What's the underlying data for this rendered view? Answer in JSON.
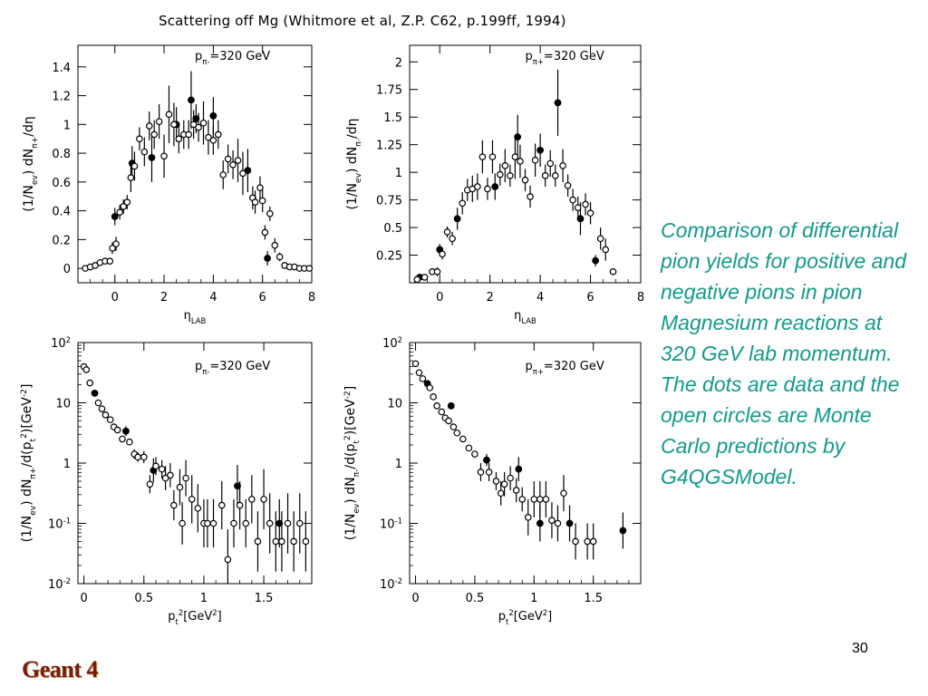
{
  "slide": {
    "title": "Scattering off Mg (Whitmore et al, Z.P. C62, p.199ff, 1994)",
    "caption": "Comparison of differential pion yields for positive and negative pions in pion Magnesium reactions at 320 GeV lab momentum. The dots are data and the open circles are Monte Carlo predictions by G4QGSModel.",
    "page_number": "30",
    "brand": "Geant 4",
    "colors": {
      "caption": "#139a8a",
      "brand": "#7a1c12"
    }
  },
  "chart_data": [
    {
      "id": "eta-pi-minus",
      "type": "scatter",
      "annotation": "pπ-=320 GeV",
      "ylabel": "(1/Nev) dNπ+/dη",
      "xlabel": "ηLAB",
      "xlim": [
        -1.5,
        8
      ],
      "ylim": [
        -0.1,
        1.55
      ],
      "x_ticks": [
        "0",
        "2",
        "4",
        "6",
        "8"
      ],
      "y_ticks": [
        "0",
        "0.2",
        "0.4",
        "0.6",
        "0.8",
        "1",
        "1.2",
        "1.4"
      ],
      "y_scale": "linear",
      "series": [
        {
          "name": "data",
          "marker": "filled-dot",
          "points": [
            [
              0,
              0.36,
              0.06
            ],
            [
              0.7,
              0.73,
              0.12
            ],
            [
              1.5,
              0.77,
              0.17
            ],
            [
              2.5,
              1.0,
              0.12
            ],
            [
              3.1,
              1.17,
              0.2
            ],
            [
              3.3,
              1.04,
              0.1
            ],
            [
              4.0,
              1.06,
              0.13
            ],
            [
              5.4,
              0.68,
              0.15
            ],
            [
              6.2,
              0.07,
              0.05
            ]
          ]
        },
        {
          "name": "mc",
          "marker": "open-circle",
          "points": [
            [
              -1.2,
              0.0,
              0
            ],
            [
              -1.0,
              0.01,
              0
            ],
            [
              -0.8,
              0.02,
              0
            ],
            [
              -0.6,
              0.04,
              0
            ],
            [
              -0.4,
              0.05,
              0
            ],
            [
              -0.2,
              0.05,
              0
            ],
            [
              -0.1,
              0.14,
              0.04
            ],
            [
              0.05,
              0.17,
              0.05
            ],
            [
              0.2,
              0.39,
              0.05
            ],
            [
              0.35,
              0.43,
              0.05
            ],
            [
              0.5,
              0.46,
              0.05
            ],
            [
              0.65,
              0.63,
              0.1
            ],
            [
              0.8,
              0.71,
              0.1
            ],
            [
              1.0,
              0.9,
              0.08
            ],
            [
              1.2,
              0.81,
              0.1
            ],
            [
              1.4,
              0.99,
              0.1
            ],
            [
              1.6,
              0.93,
              0.1
            ],
            [
              1.8,
              1.02,
              0.12
            ],
            [
              2.0,
              0.78,
              0.15
            ],
            [
              2.2,
              1.07,
              0.2
            ],
            [
              2.4,
              1.0,
              0.15
            ],
            [
              2.6,
              0.9,
              0.1
            ],
            [
              2.8,
              0.93,
              0.1
            ],
            [
              3.0,
              0.93,
              0.1
            ],
            [
              3.2,
              1.0,
              0.1
            ],
            [
              3.4,
              0.98,
              0.1
            ],
            [
              3.6,
              1.01,
              0.15
            ],
            [
              3.8,
              0.91,
              0.12
            ],
            [
              4.0,
              0.89,
              0.1
            ],
            [
              4.2,
              0.93,
              0.1
            ],
            [
              4.4,
              0.65,
              0.1
            ],
            [
              4.6,
              0.76,
              0.1
            ],
            [
              4.8,
              0.72,
              0.1
            ],
            [
              5.0,
              0.75,
              0.15
            ],
            [
              5.2,
              0.66,
              0.15
            ],
            [
              5.6,
              0.49,
              0.08
            ],
            [
              5.7,
              0.46,
              0.08
            ],
            [
              5.9,
              0.56,
              0.08
            ],
            [
              6.0,
              0.47,
              0.08
            ],
            [
              6.1,
              0.25,
              0.05
            ],
            [
              6.3,
              0.38,
              0.05
            ],
            [
              6.5,
              0.16,
              0.05
            ],
            [
              6.7,
              0.08,
              0.03
            ],
            [
              6.9,
              0.02,
              0
            ],
            [
              7.1,
              0.01,
              0
            ],
            [
              7.3,
              0.01,
              0
            ],
            [
              7.5,
              0.0,
              0
            ],
            [
              7.7,
              0.0,
              0
            ],
            [
              7.9,
              0.0,
              0
            ]
          ]
        }
      ]
    },
    {
      "id": "eta-pi-plus",
      "type": "scatter",
      "annotation": "pπ+=320 GeV",
      "ylabel": "(1/Nev) dNπ-/dη",
      "xlabel": "ηLAB",
      "xlim": [
        -1.2,
        8
      ],
      "ylim": [
        0,
        2.15
      ],
      "x_ticks": [
        "0",
        "2",
        "4",
        "6",
        "8"
      ],
      "y_ticks": [
        "0.25",
        "0.5",
        "0.75",
        "1",
        "1.25",
        "1.5",
        "1.75",
        "2"
      ],
      "y_scale": "linear",
      "series": [
        {
          "name": "data",
          "marker": "filled-dot",
          "points": [
            [
              -0.8,
              0.05,
              0
            ],
            [
              0,
              0.3,
              0.05
            ],
            [
              0.7,
              0.58,
              0.1
            ],
            [
              2.2,
              0.87,
              0.12
            ],
            [
              3.1,
              1.32,
              0.2
            ],
            [
              4.0,
              1.2,
              0.15
            ],
            [
              4.7,
              1.63,
              0.3
            ],
            [
              5.6,
              0.58,
              0.15
            ],
            [
              6.2,
              0.2,
              0.05
            ]
          ]
        },
        {
          "name": "mc",
          "marker": "open-circle",
          "points": [
            [
              -0.9,
              0.03,
              0
            ],
            [
              -0.6,
              0.05,
              0
            ],
            [
              -0.3,
              0.1,
              0.03
            ],
            [
              -0.1,
              0.1,
              0.04
            ],
            [
              0.1,
              0.26,
              0.05
            ],
            [
              0.3,
              0.46,
              0.05
            ],
            [
              0.5,
              0.4,
              0.06
            ],
            [
              0.9,
              0.72,
              0.1
            ],
            [
              1.1,
              0.84,
              0.1
            ],
            [
              1.3,
              0.85,
              0.12
            ],
            [
              1.5,
              0.87,
              0.12
            ],
            [
              1.7,
              1.14,
              0.15
            ],
            [
              1.9,
              0.85,
              0.1
            ],
            [
              2.1,
              1.14,
              0.15
            ],
            [
              2.4,
              0.98,
              0.1
            ],
            [
              2.6,
              1.06,
              0.15
            ],
            [
              2.8,
              0.97,
              0.1
            ],
            [
              3.0,
              1.14,
              0.2
            ],
            [
              3.2,
              1.1,
              0.15
            ],
            [
              3.4,
              0.93,
              0.1
            ],
            [
              3.6,
              0.78,
              0.1
            ],
            [
              3.8,
              1.11,
              0.15
            ],
            [
              4.2,
              0.97,
              0.1
            ],
            [
              4.4,
              1.08,
              0.12
            ],
            [
              4.6,
              0.97,
              0.1
            ],
            [
              4.9,
              1.06,
              0.15
            ],
            [
              5.1,
              0.88,
              0.1
            ],
            [
              5.3,
              0.75,
              0.1
            ],
            [
              5.5,
              0.68,
              0.1
            ],
            [
              5.8,
              0.71,
              0.1
            ],
            [
              6.0,
              0.63,
              0.1
            ],
            [
              6.4,
              0.4,
              0.1
            ],
            [
              6.6,
              0.3,
              0.1
            ],
            [
              6.9,
              0.1,
              0.03
            ]
          ]
        }
      ]
    },
    {
      "id": "pt2-pi-minus",
      "type": "scatter",
      "annotation": "pπ-=320 GeV",
      "ylabel": "(1/Nev) dNπ+/d(pt2)[GeV-2]",
      "xlabel": "pt2[GeV2]",
      "xlim": [
        -0.05,
        1.9
      ],
      "ylim": [
        -2,
        2
      ],
      "x_ticks": [
        "0",
        "0.5",
        "1",
        "1.5"
      ],
      "y_ticks": [
        "10-2",
        "10-1",
        "1",
        "10",
        "102"
      ],
      "y_scale": "log10",
      "series": [
        {
          "name": "data",
          "marker": "filled-dot",
          "points": [
            [
              0.09,
              1.16,
              0
            ],
            [
              0.35,
              0.53,
              0.08
            ],
            [
              0.58,
              -0.12,
              0.2
            ],
            [
              1.28,
              -0.38,
              0.35
            ],
            [
              1.63,
              -1.0,
              0.4
            ]
          ]
        },
        {
          "name": "mc",
          "marker": "open-circle",
          "points": [
            [
              0.0,
              1.6,
              0
            ],
            [
              0.02,
              1.55,
              0
            ],
            [
              0.05,
              1.33,
              0
            ],
            [
              0.12,
              1.0,
              0
            ],
            [
              0.15,
              0.9,
              0
            ],
            [
              0.18,
              0.8,
              0.05
            ],
            [
              0.22,
              0.72,
              0
            ],
            [
              0.25,
              0.6,
              0.05
            ],
            [
              0.28,
              0.55,
              0.05
            ],
            [
              0.32,
              0.4,
              0.05
            ],
            [
              0.38,
              0.35,
              0.05
            ],
            [
              0.42,
              0.15,
              0.08
            ],
            [
              0.45,
              0.1,
              0.08
            ],
            [
              0.5,
              0.1,
              0.1
            ],
            [
              0.55,
              -0.35,
              0.15
            ],
            [
              0.6,
              -0.05,
              0.15
            ],
            [
              0.65,
              -0.1,
              0.15
            ],
            [
              0.68,
              -0.25,
              0.2
            ],
            [
              0.72,
              -0.2,
              0.2
            ],
            [
              0.75,
              -0.7,
              0.25
            ],
            [
              0.8,
              -0.4,
              0.3
            ],
            [
              0.82,
              -1.0,
              0.35
            ],
            [
              0.85,
              -0.25,
              0.3
            ],
            [
              0.9,
              -0.6,
              0.4
            ],
            [
              0.95,
              -0.75,
              0.4
            ],
            [
              1.0,
              -1.0,
              0.4
            ],
            [
              1.03,
              -1.0,
              0.4
            ],
            [
              1.08,
              -1.0,
              0.4
            ],
            [
              1.15,
              -0.7,
              0.4
            ],
            [
              1.2,
              -1.6,
              0.5
            ],
            [
              1.25,
              -1.0,
              0.4
            ],
            [
              1.3,
              -0.7,
              0.4
            ],
            [
              1.35,
              -1.0,
              0.4
            ],
            [
              1.4,
              -0.6,
              0.4
            ],
            [
              1.45,
              -1.3,
              0.5
            ],
            [
              1.5,
              -0.6,
              0.5
            ],
            [
              1.55,
              -1.0,
              0.5
            ],
            [
              1.6,
              -1.3,
              0.5
            ],
            [
              1.65,
              -1.3,
              0.5
            ],
            [
              1.7,
              -1.0,
              0.5
            ],
            [
              1.75,
              -1.3,
              0.5
            ],
            [
              1.8,
              -1.0,
              0.5
            ],
            [
              1.85,
              -1.3,
              0.5
            ]
          ]
        }
      ]
    },
    {
      "id": "pt2-pi-plus",
      "type": "scatter",
      "annotation": "pπ+=320 GeV",
      "ylabel": "(1/Nev) dNπ-/d(pt2)[GeV-2]",
      "xlabel": "pt2[GeV2]",
      "xlim": [
        -0.05,
        1.9
      ],
      "ylim": [
        -2,
        2
      ],
      "x_ticks": [
        "0",
        "0.5",
        "1",
        "1.5"
      ],
      "y_ticks": [
        "10-2",
        "10-1",
        "1",
        "10",
        "102"
      ],
      "y_scale": "log10",
      "series": [
        {
          "name": "data",
          "marker": "filled-dot",
          "points": [
            [
              0.1,
              1.32,
              0
            ],
            [
              0.3,
              0.95,
              0.05
            ],
            [
              0.6,
              0.05,
              0.1
            ],
            [
              0.87,
              -0.1,
              0.2
            ],
            [
              1.05,
              -1.0,
              0.3
            ],
            [
              1.3,
              -1.0,
              0.3
            ],
            [
              1.75,
              -1.12,
              0.3
            ]
          ]
        },
        {
          "name": "mc",
          "marker": "open-circle",
          "points": [
            [
              0.0,
              1.65,
              0
            ],
            [
              0.03,
              1.5,
              0
            ],
            [
              0.06,
              1.4,
              0
            ],
            [
              0.12,
              1.25,
              0
            ],
            [
              0.15,
              1.1,
              0
            ],
            [
              0.18,
              0.95,
              0
            ],
            [
              0.22,
              0.85,
              0
            ],
            [
              0.25,
              0.75,
              0
            ],
            [
              0.28,
              0.7,
              0.05
            ],
            [
              0.32,
              0.6,
              0.05
            ],
            [
              0.35,
              0.5,
              0.05
            ],
            [
              0.4,
              0.4,
              0.05
            ],
            [
              0.45,
              0.25,
              0.05
            ],
            [
              0.5,
              0.15,
              0.05
            ],
            [
              0.55,
              -0.15,
              0.15
            ],
            [
              0.62,
              -0.15,
              0.15
            ],
            [
              0.68,
              -0.3,
              0.15
            ],
            [
              0.72,
              -0.5,
              0.2
            ],
            [
              0.75,
              -0.35,
              0.2
            ],
            [
              0.8,
              -0.25,
              0.2
            ],
            [
              0.85,
              -0.45,
              0.2
            ],
            [
              0.9,
              -0.6,
              0.2
            ],
            [
              0.95,
              -0.9,
              0.3
            ],
            [
              1.0,
              -0.6,
              0.3
            ],
            [
              1.05,
              -0.6,
              0.3
            ],
            [
              1.1,
              -0.6,
              0.3
            ],
            [
              1.15,
              -0.95,
              0.3
            ],
            [
              1.2,
              -1.0,
              0.3
            ],
            [
              1.25,
              -0.5,
              0.3
            ],
            [
              1.35,
              -1.3,
              0.3
            ],
            [
              1.45,
              -1.3,
              0.3
            ],
            [
              1.5,
              -1.3,
              0.3
            ]
          ]
        }
      ]
    }
  ]
}
